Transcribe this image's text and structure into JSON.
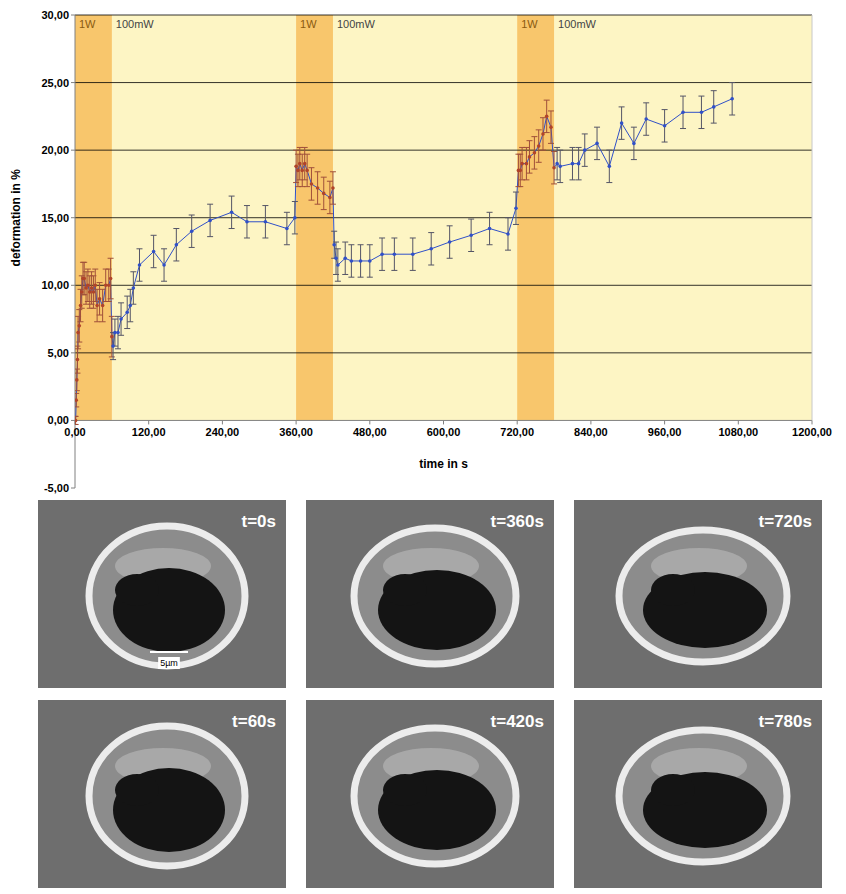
{
  "chart_data": {
    "type": "line",
    "x_label": "time in s",
    "y_label": "deformation in %",
    "xlim": [
      0,
      1200
    ],
    "ylim": [
      -5,
      30
    ],
    "xticks": [
      {
        "value": 0,
        "label": "0,00"
      },
      {
        "value": 120,
        "label": "120,00"
      },
      {
        "value": 240,
        "label": "240,00"
      },
      {
        "value": 360,
        "label": "360,00"
      },
      {
        "value": 480,
        "label": "480,00"
      },
      {
        "value": 600,
        "label": "600,00"
      },
      {
        "value": 720,
        "label": "720,00"
      },
      {
        "value": 840,
        "label": "840,00"
      },
      {
        "value": 960,
        "label": "960,00"
      },
      {
        "value": 1080,
        "label": "1080,00"
      },
      {
        "value": 1200,
        "label": "1200,00"
      }
    ],
    "yticks": [
      {
        "value": -5,
        "label": "-5,00"
      },
      {
        "value": 0,
        "label": "0,00"
      },
      {
        "value": 5,
        "label": "5,00"
      },
      {
        "value": 10,
        "label": "10,00"
      },
      {
        "value": 15,
        "label": "15,00"
      },
      {
        "value": 20,
        "label": "20,00"
      },
      {
        "value": 25,
        "label": "25,00"
      },
      {
        "value": 30,
        "label": "30,00"
      }
    ],
    "grid": true,
    "bands": [
      {
        "start": 0,
        "end": 60,
        "label": "1W",
        "after_label": "100mW"
      },
      {
        "start": 360,
        "end": 420,
        "label": "1W",
        "after_label": "100mW"
      },
      {
        "start": 720,
        "end": 780,
        "label": "1W",
        "after_label": "100mW"
      }
    ],
    "series": [
      {
        "color": "#3050c8",
        "marker": "circle",
        "x": [
          0,
          1,
          2,
          3,
          4,
          5,
          7,
          9,
          11,
          13,
          15,
          18,
          21,
          24,
          27,
          30,
          33,
          36,
          40,
          45,
          50,
          55,
          58,
          60,
          62,
          65,
          70,
          75,
          85,
          90,
          95,
          105,
          128,
          145,
          165,
          190,
          220,
          255,
          280,
          310,
          345,
          358,
          360,
          363,
          366,
          370,
          374,
          378,
          385,
          395,
          405,
          415,
          420,
          422,
          425,
          428,
          440,
          450,
          465,
          480,
          500,
          520,
          550,
          580,
          610,
          645,
          675,
          705,
          718,
          722,
          725,
          728,
          735,
          740,
          748,
          755,
          762,
          768,
          775,
          780,
          785,
          790,
          810,
          820,
          830,
          850,
          870,
          890,
          910,
          930,
          960,
          990,
          1020,
          1040,
          1070
        ],
        "values": [
          0,
          0,
          1.5,
          3,
          4.5,
          6.5,
          7,
          8.5,
          9.5,
          10.5,
          10.5,
          9.8,
          10,
          9.5,
          9.8,
          9.5,
          10,
          8.5,
          9,
          8.5,
          10,
          10,
          10.5,
          6.2,
          5.5,
          6.5,
          6.5,
          7.5,
          8,
          8.5,
          9.8,
          11.5,
          12.5,
          11.5,
          13,
          14,
          14.8,
          15.4,
          14.7,
          14.7,
          14.2,
          15,
          18.8,
          18.5,
          19,
          18.5,
          19,
          18.5,
          17.5,
          17.2,
          16.8,
          16.5,
          17.2,
          13,
          12,
          11.5,
          12,
          11.8,
          11.8,
          11.8,
          12.3,
          12.3,
          12.3,
          12.7,
          13.2,
          13.7,
          14.2,
          13.8,
          15.7,
          18.5,
          18.5,
          19,
          19,
          19.5,
          19.8,
          20.3,
          21.2,
          22.5,
          21.7,
          18.7,
          19,
          18.8,
          19,
          19,
          20,
          20.5,
          18.8,
          22,
          20.5,
          22.3,
          21.8,
          22.8,
          22.8,
          23.2,
          23.8
        ],
        "errors": [
          0.3,
          0.3,
          0.5,
          0.8,
          1,
          1.2,
          1.2,
          1.2,
          1.2,
          1.2,
          1.2,
          1.2,
          1.2,
          1.2,
          1.2,
          1.2,
          1.2,
          1.2,
          1.2,
          1.2,
          1.2,
          1.2,
          1.5,
          1.5,
          1,
          1,
          1.2,
          1.2,
          1.2,
          1.2,
          1.2,
          1.2,
          1.2,
          1.2,
          1.2,
          1.2,
          1.2,
          1.2,
          1.2,
          1.2,
          1.2,
          1.2,
          1.2,
          1.2,
          1.2,
          1.2,
          1.2,
          1.2,
          1.2,
          1.2,
          1.2,
          1.2,
          1.2,
          1,
          1.2,
          1.2,
          1.2,
          1.2,
          1.2,
          1.2,
          1.2,
          1.2,
          1.2,
          1.2,
          1.2,
          1.2,
          1.2,
          1.2,
          1.2,
          1.2,
          1.2,
          1.2,
          1.2,
          1.2,
          1.2,
          1.2,
          1.2,
          1.2,
          1.2,
          1.2,
          1.2,
          1.2,
          1.2,
          1.2,
          1.2,
          1.2,
          1.2,
          1.2,
          1.2,
          1.2,
          1.2,
          1.2,
          1.2,
          1.2,
          1.2
        ]
      }
    ]
  },
  "images": {
    "rows": [
      [
        "t=0s",
        "t=360s",
        "t=720s"
      ],
      [
        "t=60s",
        "t=420s",
        "t=780s"
      ]
    ],
    "scale_bar": "5µm"
  }
}
